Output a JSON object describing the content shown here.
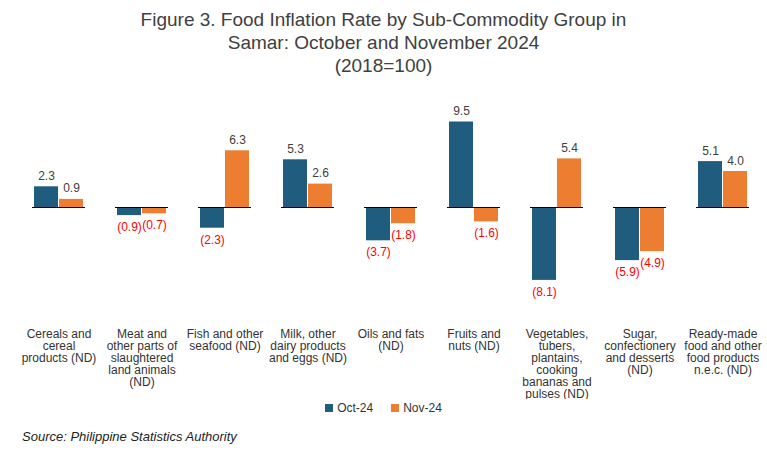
{
  "chart_data": {
    "type": "bar",
    "title": "Figure 3. Food Inflation Rate by Sub-Commodity Group in Samar: October and November 2024",
    "subtitle": "(2018=100)",
    "source": "Source: Philippine Statistics Authority",
    "categories": [
      "Cereals and cereal products (ND)",
      "Meat and other parts of slaughtered land animals (ND)",
      "Fish and other seafood (ND)",
      "Milk, other dairy products and eggs (ND)",
      "Oils and fats (ND)",
      "Fruits and nuts (ND)",
      "Vegetables, tubers, plantains, cooking bananas and pulses (ND)",
      "Sugar, confectionery and desserts (ND)",
      "Ready-made food and other food products n.e.c. (ND)"
    ],
    "series": [
      {
        "name": "Oct-24",
        "color": "#1f5c7e",
        "values": [
          2.3,
          -0.9,
          -2.3,
          5.3,
          -3.7,
          9.5,
          -8.1,
          -5.9,
          5.1
        ],
        "value_labels": [
          "2.3",
          "(0.9)",
          "(2.3)",
          "5.3",
          "(3.7)",
          "9.5",
          "(8.1)",
          "(5.9)",
          "5.1"
        ]
      },
      {
        "name": "Nov-24",
        "color": "#ed7d31",
        "values": [
          0.9,
          -0.7,
          6.3,
          2.6,
          -1.8,
          -1.6,
          5.4,
          -4.9,
          4.0
        ],
        "value_labels": [
          "0.9",
          "(0.7)",
          "6.3",
          "2.6",
          "(1.8)",
          "(1.6)",
          "5.4",
          "(4.9)",
          "4.0"
        ]
      }
    ],
    "ylim": [
      -10,
      12
    ],
    "grid": false,
    "legend": "bottom",
    "data_labels": true,
    "tick_labels": "x"
  }
}
